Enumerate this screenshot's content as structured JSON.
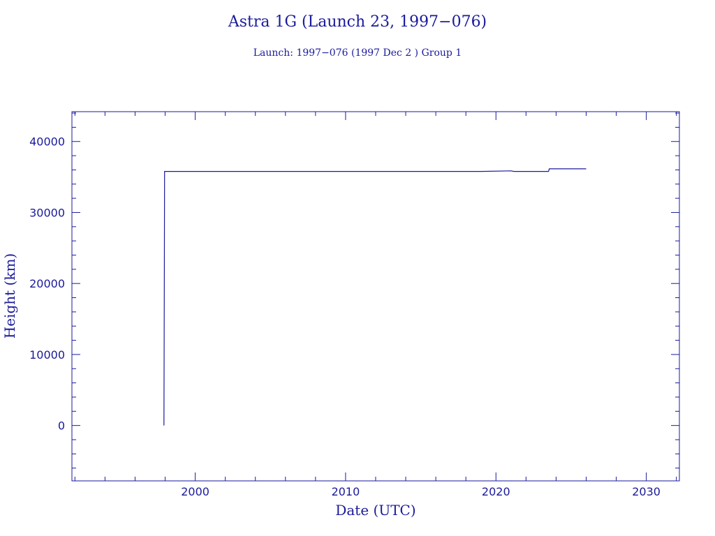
{
  "chart_data": {
    "type": "line",
    "title": "Astra 1G (Launch 23, 1997−076)",
    "subtitle": "Launch: 1997−076  (1997 Dec  2 )  Group 1",
    "xlabel": "Date (UTC)",
    "ylabel": "Height (km)",
    "xlim": [
      1991.8,
      2032.2
    ],
    "ylim": [
      -7800,
      44200
    ],
    "x_ticks": [
      2000,
      2010,
      2020,
      2030
    ],
    "y_ticks": [
      0,
      10000,
      20000,
      30000,
      40000
    ],
    "grid": false,
    "series": [
      {
        "x": [
          1997.92,
          1997.95,
          1997.96,
          1997.97,
          1998.0,
          1998.1,
          2005.0,
          2012.0,
          2014.8,
          2017.0,
          2019.0,
          2021.0,
          2021.2,
          2023.5,
          2023.55,
          2025.0,
          2026.0
        ],
        "y": [
          0,
          23000,
          35786,
          35786,
          35786,
          35786,
          35786,
          35786,
          35786,
          35786,
          35786,
          35860,
          35786,
          35786,
          36150,
          36150,
          36150
        ]
      }
    ],
    "colors": {
      "ink": "#1a1a9c",
      "background": "#ffffff"
    }
  }
}
